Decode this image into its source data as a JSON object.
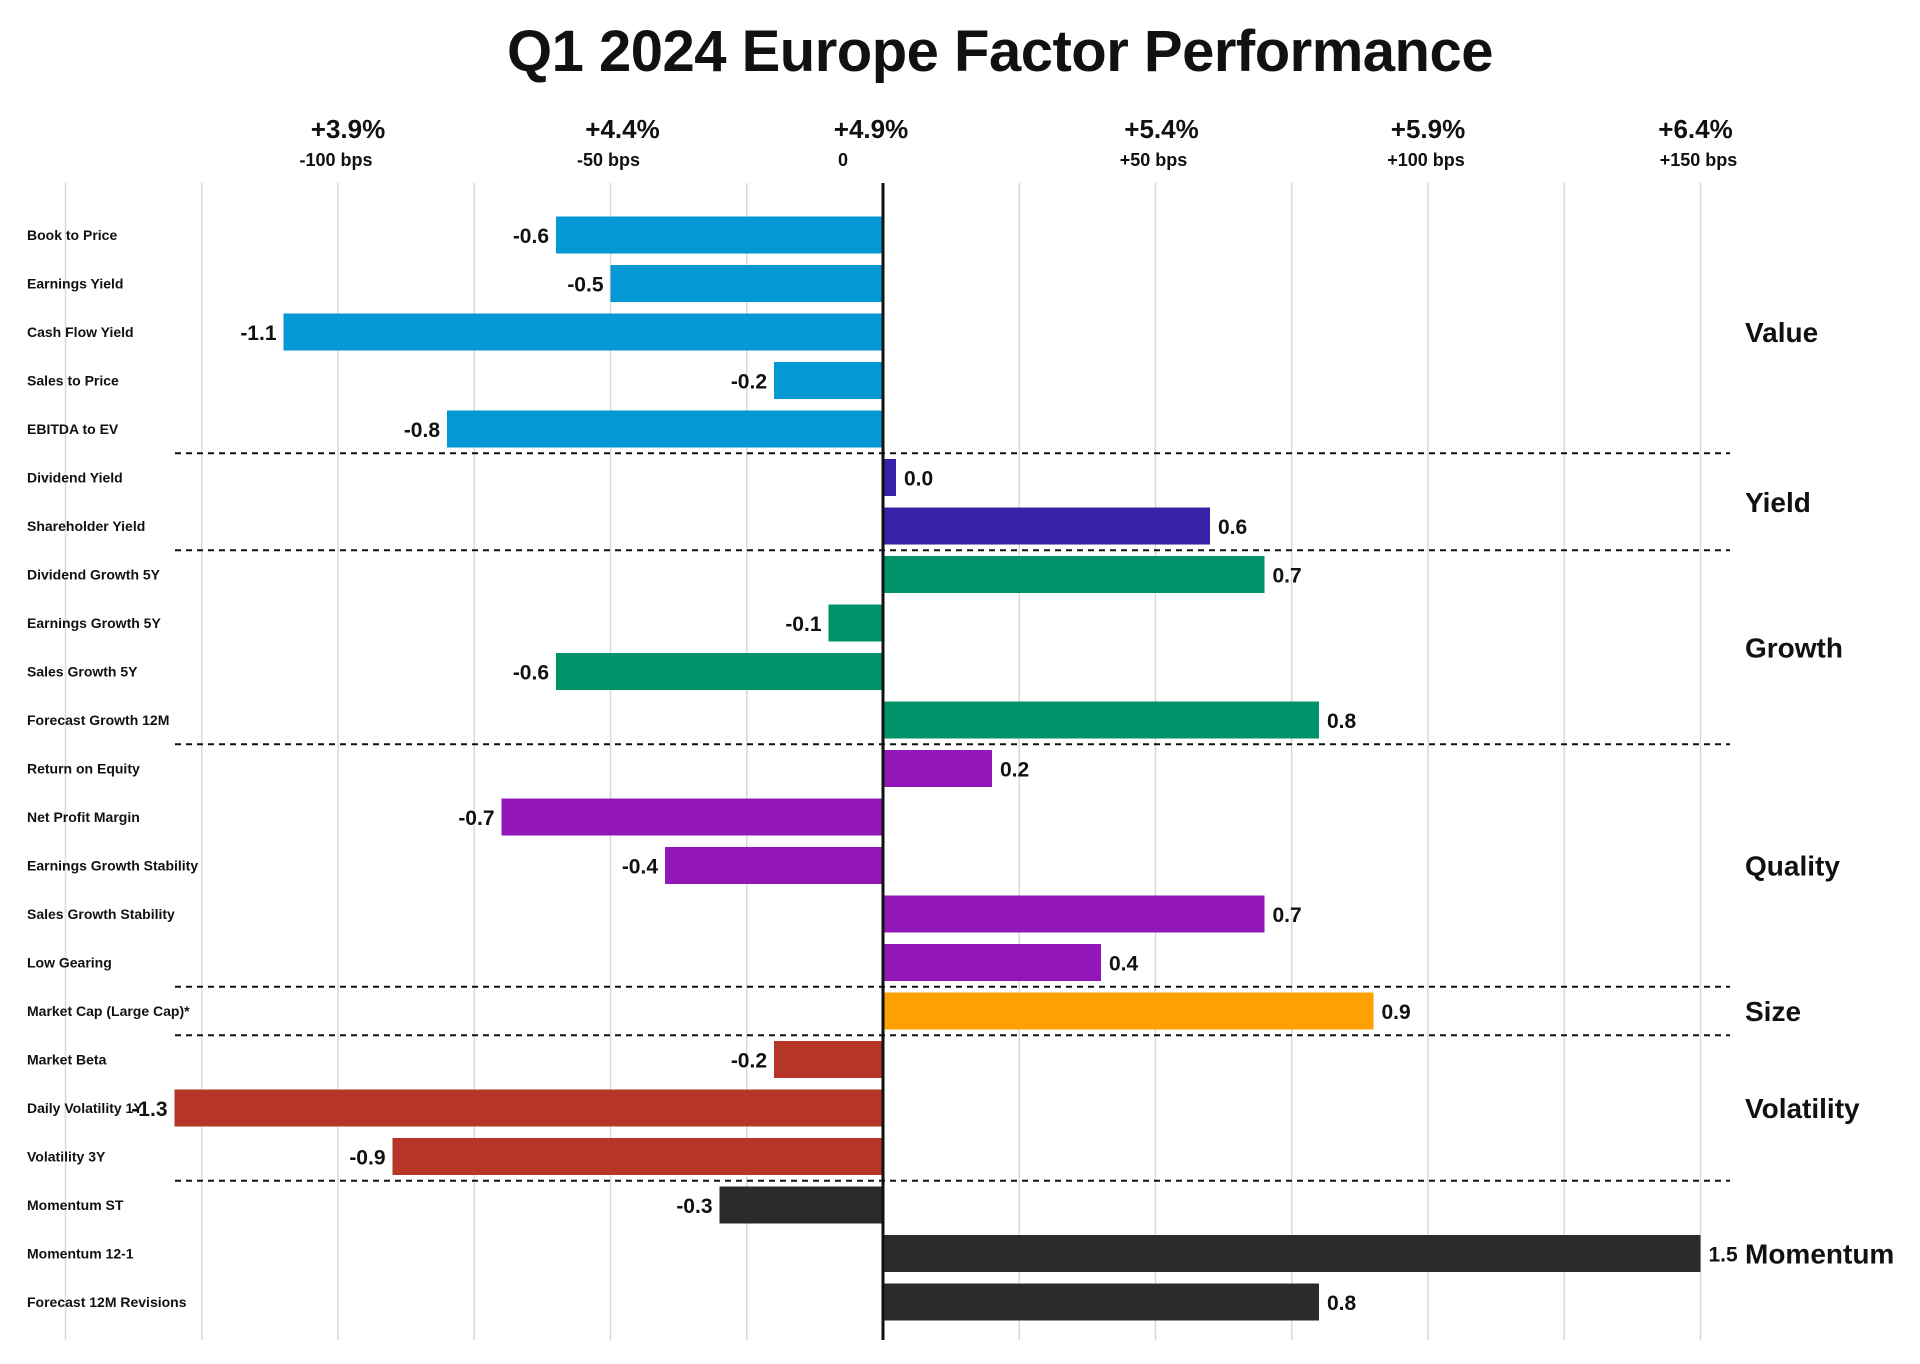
{
  "chart_data": {
    "type": "bar",
    "orientation": "horizontal",
    "title": "Q1 2024 Europe Factor Performance",
    "xlim": [
      -2.5,
      1.65
    ],
    "grid": true,
    "ticks": [
      {
        "value": -1.0,
        "pct": "+3.9%",
        "bps": "-100 bps"
      },
      {
        "value": -0.5,
        "pct": "+4.4%",
        "bps": "-50 bps"
      },
      {
        "value": 0.0,
        "pct": "+4.9%",
        "bps": "0"
      },
      {
        "value": 0.5,
        "pct": "+5.4%",
        "bps": "+50 bps"
      },
      {
        "value": 1.0,
        "pct": "+5.9%",
        "bps": "+100 bps"
      },
      {
        "value": 1.5,
        "pct": "+6.4%",
        "bps": "+150 bps"
      }
    ],
    "groups": [
      {
        "name": "Value",
        "color": "#0498D4",
        "rows": [
          {
            "label": "Book to Price",
            "value": -0.6
          },
          {
            "label": "Earnings Yield",
            "value": -0.5
          },
          {
            "label": "Cash Flow Yield",
            "value": -1.1
          },
          {
            "label": "Sales to Price",
            "value": -0.2
          },
          {
            "label": "EBITDA to EV",
            "value": -0.8
          }
        ]
      },
      {
        "name": "Yield",
        "color": "#3721A6",
        "rows": [
          {
            "label": "Dividend Yield",
            "value": 0.0
          },
          {
            "label": "Shareholder Yield",
            "value": 0.6
          }
        ]
      },
      {
        "name": "Growth",
        "color": "#00936A",
        "rows": [
          {
            "label": "Dividend Growth 5Y",
            "value": 0.7
          },
          {
            "label": "Earnings Growth 5Y",
            "value": -0.1
          },
          {
            "label": "Sales Growth 5Y",
            "value": -0.6
          },
          {
            "label": "Forecast Growth 12M",
            "value": 0.8
          }
        ]
      },
      {
        "name": "Quality",
        "color": "#9317B8",
        "rows": [
          {
            "label": "Return on Equity",
            "value": 0.2
          },
          {
            "label": "Net Profit Margin",
            "value": -0.7
          },
          {
            "label": "Earnings Growth Stability",
            "value": -0.4
          },
          {
            "label": "Sales Growth Stability",
            "value": 0.7
          },
          {
            "label": "Low Gearing",
            "value": 0.4
          }
        ]
      },
      {
        "name": "Size",
        "color": "#FFA002",
        "rows": [
          {
            "label": "Market Cap (Large Cap)*",
            "value": 0.9
          }
        ]
      },
      {
        "name": "Volatility",
        "color": "#B53526",
        "rows": [
          {
            "label": "Market Beta",
            "value": -0.2
          },
          {
            "label": "Daily Volatility 1Y",
            "value": -1.3
          },
          {
            "label": "Volatility 3Y",
            "value": -0.9
          }
        ]
      },
      {
        "name": "Momentum",
        "color": "#2B2B2B",
        "rows": [
          {
            "label": "Momentum ST",
            "value": -0.3
          },
          {
            "label": "Momentum 12-1",
            "value": 1.5
          },
          {
            "label": "Forecast 12M Revisions",
            "value": 0.8
          }
        ]
      }
    ]
  }
}
